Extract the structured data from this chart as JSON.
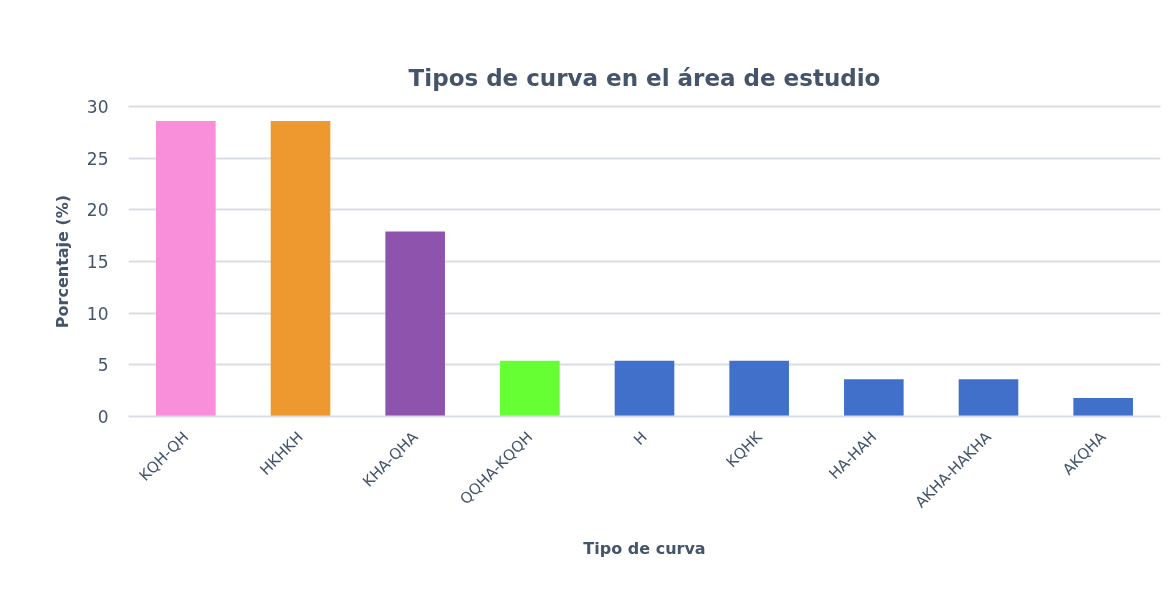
{
  "chart_data": {
    "type": "bar",
    "title": "Tipos de curva en el área de estudio",
    "xlabel": "Tipo de curva",
    "ylabel": "Porcentaje (%)",
    "categories": [
      "KQH-QH",
      "HKHKH",
      "KHA-QHA",
      "QQHA-KQQH",
      "H",
      "KQHK",
      "HA-HAH",
      "AKHA-HAKHA",
      "AKQHA"
    ],
    "values": [
      28.6,
      28.6,
      17.9,
      5.4,
      5.4,
      5.4,
      3.6,
      3.6,
      1.8
    ],
    "colors": [
      "#f98fda",
      "#ee9830",
      "#8e54ad",
      "#66ff33",
      "#4170cb",
      "#4170cb",
      "#4170cb",
      "#4170cb",
      "#4170cb"
    ],
    "ylim": [
      0,
      30
    ],
    "yticks": [
      0,
      5,
      10,
      15,
      20,
      25,
      30
    ],
    "grid": "y"
  }
}
